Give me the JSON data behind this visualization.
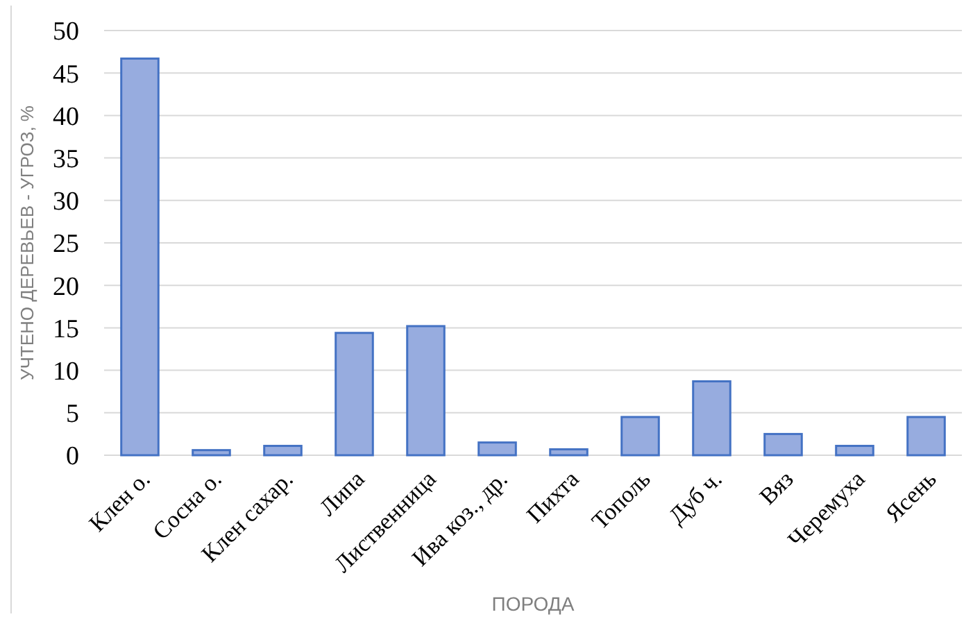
{
  "chart_data": {
    "type": "bar",
    "xlabel": "ПОРОДА",
    "ylabel": "УЧТЕНО ДЕРЕВЬЕВ - УГРОЗ, %",
    "categories": [
      "Клен о.",
      "Сосна о.",
      "Клен сахар.",
      "Липа",
      "Лиственница",
      "Ива коз., др.",
      "Пихта",
      "Тополь",
      "Дуб ч.",
      "Вяз",
      "Черемуха",
      "Ясень"
    ],
    "values": [
      46.7,
      0.6,
      1.1,
      14.4,
      15.2,
      1.5,
      0.7,
      4.5,
      8.7,
      2.5,
      1.1,
      4.5
    ],
    "color": "#97acdf",
    "ylim": [
      0,
      50
    ],
    "yticks": [
      0,
      5,
      10,
      15,
      20,
      25,
      30,
      35,
      40,
      45,
      50
    ],
    "grid": "y"
  }
}
